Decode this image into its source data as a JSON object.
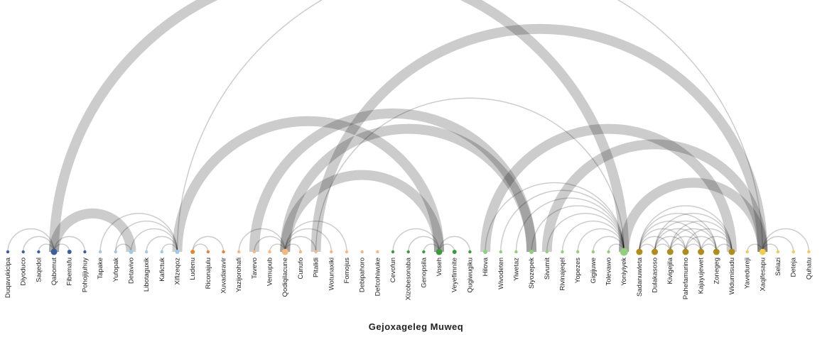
{
  "title": "Gejoxageleg Muweq",
  "colors": {
    "link": "#000000",
    "blue_dark": "#3a5f9c",
    "blue_light": "#9ec7ea",
    "orange": "#e8822d",
    "orange_light": "#f4b97a",
    "green": "#3c9a3c",
    "green_light": "#8fd07a",
    "olive": "#b08c1c",
    "yellow": "#f2cc4a"
  },
  "nodes": [
    {
      "name": "Duqavukicipa",
      "color": "blue_dark",
      "size": 1
    },
    {
      "name": "Diyoduco",
      "color": "blue_dark",
      "size": 1
    },
    {
      "name": "Saqedol",
      "color": "blue_dark",
      "size": 1
    },
    {
      "name": "Qabomut",
      "color": "blue_dark",
      "size": 3
    },
    {
      "name": "Fibemafu",
      "color": "blue_dark",
      "size": 2
    },
    {
      "name": "Pohojijuhuy",
      "color": "blue_dark",
      "size": 1
    },
    {
      "name": "Tapake",
      "color": "blue_light",
      "size": 1
    },
    {
      "name": "Yufopak",
      "color": "blue_light",
      "size": 1
    },
    {
      "name": "Detavivo",
      "color": "blue_light",
      "size": 2
    },
    {
      "name": "Libotaguxik",
      "color": "blue_light",
      "size": 1
    },
    {
      "name": "Kafictuk",
      "color": "blue_light",
      "size": 1
    },
    {
      "name": "Xifizeqoz",
      "color": "blue_light",
      "size": 2
    },
    {
      "name": "Ludenu",
      "color": "orange",
      "size": 2
    },
    {
      "name": "Riconajulu",
      "color": "orange",
      "size": 1
    },
    {
      "name": "Xuvadaravir",
      "color": "orange",
      "size": 1
    },
    {
      "name": "Yazijorohafi",
      "color": "orange_light",
      "size": 1
    },
    {
      "name": "Tavevo",
      "color": "orange_light",
      "size": 1
    },
    {
      "name": "Vemupub",
      "color": "orange_light",
      "size": 1
    },
    {
      "name": "Qodiqilacune",
      "color": "orange_light",
      "size": 3
    },
    {
      "name": "Cunufo",
      "color": "orange_light",
      "size": 1
    },
    {
      "name": "Pitalidi",
      "color": "orange_light",
      "size": 1
    },
    {
      "name": "Wotunaxiki",
      "color": "orange_light",
      "size": 1
    },
    {
      "name": "Fomojus",
      "color": "orange_light",
      "size": 1
    },
    {
      "name": "Debipahoro",
      "color": "orange_light",
      "size": 1
    },
    {
      "name": "Defcohiwuke",
      "color": "orange_light",
      "size": 1
    },
    {
      "name": "Cevofun",
      "color": "green",
      "size": 1
    },
    {
      "name": "Xizobesonaba",
      "color": "green",
      "size": 1
    },
    {
      "name": "Genopsila",
      "color": "green",
      "size": 1
    },
    {
      "name": "Voseh",
      "color": "green",
      "size": 3
    },
    {
      "name": "Veyefimnite",
      "color": "green",
      "size": 2
    },
    {
      "name": "Qugiwugiku",
      "color": "green",
      "size": 1
    },
    {
      "name": "Hilova",
      "color": "green_light",
      "size": 2
    },
    {
      "name": "Wivodeten",
      "color": "green_light",
      "size": 1
    },
    {
      "name": "Yiwetaz",
      "color": "green_light",
      "size": 1
    },
    {
      "name": "Siyozepek",
      "color": "green_light",
      "size": 2
    },
    {
      "name": "Sivumit",
      "color": "green_light",
      "size": 1
    },
    {
      "name": "Rivinajeqel",
      "color": "green_light",
      "size": 1
    },
    {
      "name": "Yopezes",
      "color": "green_light",
      "size": 1
    },
    {
      "name": "Gigijuwe",
      "color": "green_light",
      "size": 1
    },
    {
      "name": "Tolevawo",
      "color": "green_light",
      "size": 1
    },
    {
      "name": "Yoniyiyek",
      "color": "green_light",
      "size": 4
    },
    {
      "name": "Sadanuwleta",
      "color": "olive",
      "size": 3
    },
    {
      "name": "Dulakasoso",
      "color": "olive",
      "size": 3
    },
    {
      "name": "Kivigejila",
      "color": "olive",
      "size": 3
    },
    {
      "name": "Pahefamurino",
      "color": "olive",
      "size": 3
    },
    {
      "name": "Kajayujewet",
      "color": "olive",
      "size": 3
    },
    {
      "name": "Zonegeg",
      "color": "olive",
      "size": 3
    },
    {
      "name": "Widumisudu",
      "color": "olive",
      "size": 3
    },
    {
      "name": "Yavedureji",
      "color": "yellow",
      "size": 1
    },
    {
      "name": "Xaqifesapu",
      "color": "yellow",
      "size": 3
    },
    {
      "name": "Selazi",
      "color": "yellow",
      "size": 1
    },
    {
      "name": "Deteja",
      "color": "yellow",
      "size": 1
    },
    {
      "name": "Quhatu",
      "color": "yellow",
      "size": 1
    }
  ],
  "links": [
    [
      0,
      3,
      1.5
    ],
    [
      1,
      3,
      1.5
    ],
    [
      2,
      3,
      1.5
    ],
    [
      3,
      4,
      1.5
    ],
    [
      3,
      5,
      1.5
    ],
    [
      3,
      8,
      14
    ],
    [
      3,
      40,
      14
    ],
    [
      6,
      11,
      1.5
    ],
    [
      7,
      8,
      1.5
    ],
    [
      7,
      11,
      1.5
    ],
    [
      9,
      11,
      1.5
    ],
    [
      10,
      11,
      1.5
    ],
    [
      8,
      11,
      1.5
    ],
    [
      11,
      49,
      1.5
    ],
    [
      11,
      28,
      14
    ],
    [
      12,
      14,
      1.5
    ],
    [
      12,
      13,
      1.5
    ],
    [
      15,
      18,
      1.5
    ],
    [
      16,
      18,
      1.5
    ],
    [
      17,
      18,
      1.5
    ],
    [
      18,
      19,
      1.5
    ],
    [
      18,
      20,
      1.5
    ],
    [
      18,
      21,
      1.5
    ],
    [
      18,
      22,
      1.5
    ],
    [
      18,
      34,
      14
    ],
    [
      18,
      28,
      14
    ],
    [
      16,
      34,
      14
    ],
    [
      20,
      49,
      14
    ],
    [
      20,
      40,
      1.5
    ],
    [
      25,
      28,
      1.5
    ],
    [
      26,
      28,
      1.5
    ],
    [
      27,
      28,
      1.5
    ],
    [
      28,
      29,
      1.5
    ],
    [
      28,
      30,
      1.5
    ],
    [
      31,
      40,
      1.5
    ],
    [
      32,
      40,
      1.5
    ],
    [
      33,
      40,
      1.5
    ],
    [
      34,
      40,
      1.5
    ],
    [
      35,
      40,
      1.5
    ],
    [
      36,
      40,
      1.5
    ],
    [
      37,
      40,
      1.5
    ],
    [
      38,
      40,
      1.5
    ],
    [
      39,
      40,
      1.5
    ],
    [
      31,
      47,
      14
    ],
    [
      35,
      49,
      14
    ],
    [
      40,
      49,
      14
    ],
    [
      41,
      42,
      1.5
    ],
    [
      41,
      43,
      1.5
    ],
    [
      41,
      44,
      1.5
    ],
    [
      41,
      45,
      1.5
    ],
    [
      41,
      46,
      1.5
    ],
    [
      41,
      47,
      1.5
    ],
    [
      42,
      43,
      1.5
    ],
    [
      42,
      44,
      1.5
    ],
    [
      42,
      45,
      1.5
    ],
    [
      42,
      46,
      1.5
    ],
    [
      42,
      47,
      1.5
    ],
    [
      43,
      44,
      1.5
    ],
    [
      43,
      45,
      1.5
    ],
    [
      43,
      46,
      1.5
    ],
    [
      43,
      47,
      1.5
    ],
    [
      44,
      45,
      1.5
    ],
    [
      44,
      46,
      1.5
    ],
    [
      44,
      47,
      1.5
    ],
    [
      45,
      46,
      1.5
    ],
    [
      45,
      47,
      1.5
    ],
    [
      46,
      47,
      1.5
    ],
    [
      48,
      49,
      1.5
    ],
    [
      49,
      50,
      1.5
    ],
    [
      49,
      51,
      1.5
    ],
    [
      49,
      52,
      1.5
    ]
  ]
}
